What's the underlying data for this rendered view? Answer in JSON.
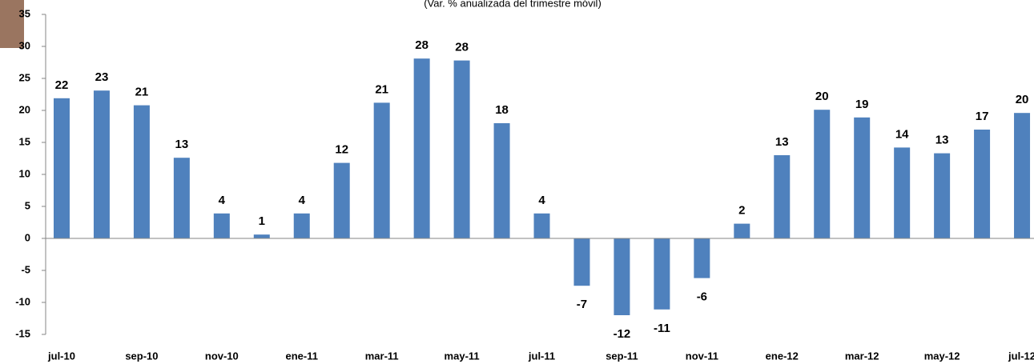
{
  "chart_data": {
    "type": "bar",
    "subtitle": "(Var. % anualizada del trimestre móvil)",
    "categories": [
      "jul-10",
      null,
      "sep-10",
      null,
      "nov-10",
      null,
      "ene-11",
      null,
      "mar-11",
      null,
      "may-11",
      null,
      "jul-11",
      null,
      "sep-11",
      null,
      "nov-11",
      null,
      "ene-12",
      null,
      "mar-12",
      null,
      "may-12",
      null,
      "jul-12"
    ],
    "values": [
      21.9,
      23.1,
      20.8,
      12.6,
      3.9,
      0.6,
      3.9,
      11.8,
      21.2,
      28.1,
      27.8,
      18.0,
      3.9,
      -7.4,
      -12.0,
      -11.1,
      -6.2,
      2.3,
      13.0,
      20.1,
      18.9,
      14.2,
      13.3,
      17.0,
      19.6
    ],
    "value_labels": [
      "22",
      "23",
      "21",
      "13",
      "4",
      "1",
      "4",
      "12",
      "21",
      "28",
      "28",
      "18",
      "4",
      "-7",
      "-12",
      "-11",
      "-6",
      "2",
      "13",
      "20",
      "19",
      "14",
      "13",
      "17",
      "20"
    ],
    "color": "#4f81bd",
    "ylim": [
      -15,
      35
    ],
    "yticks": [
      -15,
      -10,
      -5,
      0,
      5,
      10,
      15,
      20,
      25,
      30,
      35
    ],
    "grid": false
  }
}
